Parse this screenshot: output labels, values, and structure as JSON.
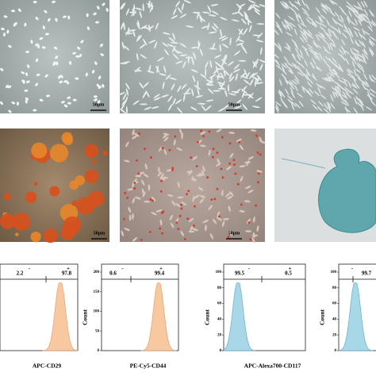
{
  "scale_bars": [
    "50μm",
    "50μm",
    "50μm",
    "50μm"
  ],
  "histograms": [
    {
      "neg_marker": "-",
      "pos_marker": "+",
      "neg_value": "2.2",
      "pos_value": "97.8",
      "x_label": "APC-CD29"
    },
    {
      "neg_marker": "-",
      "pos_marker": "+",
      "neg_value": "0.6",
      "pos_value": "99.4",
      "x_label": "PE-Cy5-CD44",
      "y_label": "Count",
      "y_ticks": [
        "200",
        "150",
        "100",
        "50",
        "0"
      ]
    },
    {
      "neg_marker": "-",
      "pos_marker": "+",
      "neg_value": "99.5",
      "pos_value": "0.5",
      "x_label": "APC-Alexa700-CD117",
      "y_label": "Count",
      "y_ticks": [
        "100",
        "80",
        "60",
        "40",
        "20",
        "0"
      ]
    },
    {
      "neg_marker": "-",
      "pos_value": "99.7",
      "y_label": "Count",
      "y_ticks": [
        "100",
        "80",
        "60",
        "40",
        "20",
        "0"
      ]
    }
  ]
}
